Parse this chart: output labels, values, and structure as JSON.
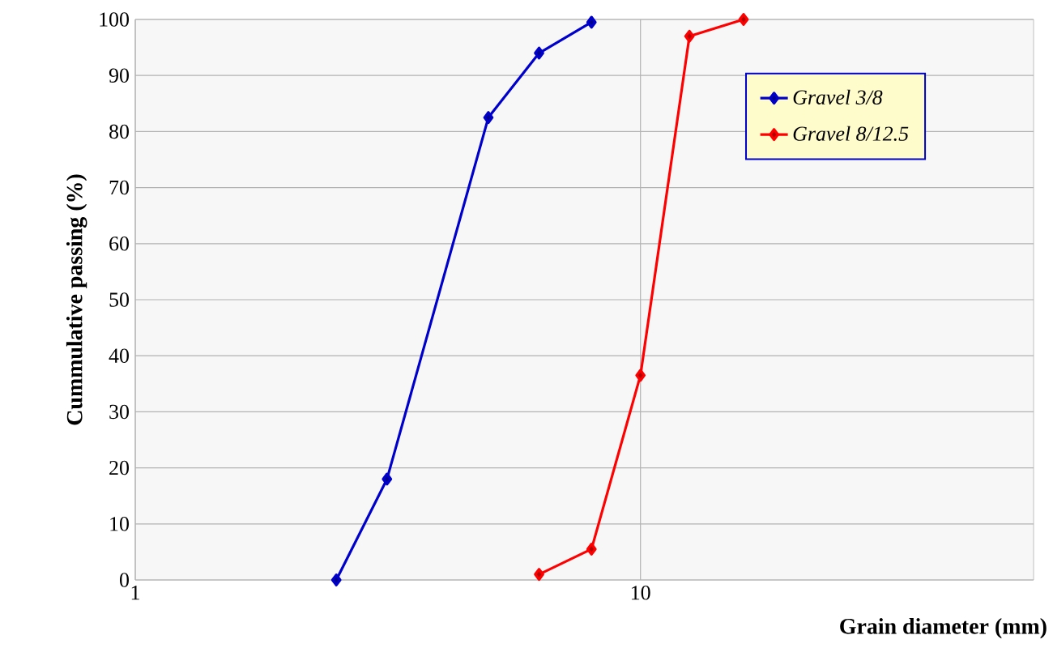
{
  "chart_data": {
    "type": "line",
    "xlabel": "Grain diameter (mm)",
    "ylabel": "Cummulative passing (%)",
    "log": "x",
    "xlim": [
      1,
      60
    ],
    "xticks": [
      1,
      10
    ],
    "ylim": [
      0,
      100
    ],
    "yticks": [
      0,
      10,
      20,
      30,
      40,
      50,
      60,
      70,
      80,
      90,
      100
    ],
    "grid": true,
    "legend": "top right",
    "marker": "diamond",
    "line_style": "solid",
    "series": [
      {
        "name": "Gravel 3/8",
        "color": "#0000cc",
        "x": [
          2.5,
          3.15,
          5,
          6.3,
          8
        ],
        "values": [
          0,
          18,
          82.5,
          94,
          99.5
        ]
      },
      {
        "name": "Gravel 8/12.5",
        "color": "#ff0000",
        "x": [
          6.3,
          8,
          10,
          12.5,
          16
        ],
        "values": [
          1,
          5.5,
          36.5,
          97,
          100
        ]
      }
    ]
  }
}
